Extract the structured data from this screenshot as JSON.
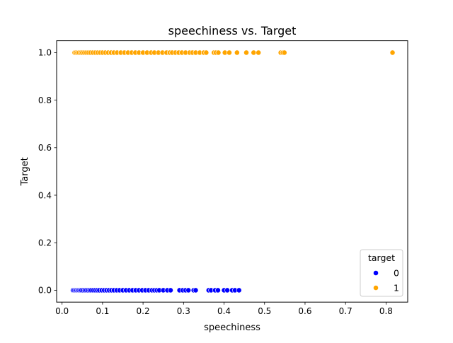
{
  "chart_data": {
    "type": "scatter",
    "title": "speechiness vs. Target",
    "xlabel": "speechiness",
    "ylabel": "Target",
    "xlim": [
      -0.0134,
      0.8535
    ],
    "ylim": [
      -0.05,
      1.05
    ],
    "xticks": [
      0.0,
      0.1,
      0.2,
      0.3,
      0.4,
      0.5,
      0.6,
      0.7,
      0.8
    ],
    "yticks": [
      0.0,
      0.2,
      0.4,
      0.6,
      0.8,
      1.0
    ],
    "xtick_labels": [
      "0.0",
      "0.1",
      "0.2",
      "0.3",
      "0.4",
      "0.5",
      "0.6",
      "0.7",
      "0.8"
    ],
    "ytick_labels": [
      "0.0",
      "0.2",
      "0.4",
      "0.6",
      "0.8",
      "1.0"
    ],
    "grid": false,
    "legend": {
      "title": "target",
      "placement": "lower-right",
      "entries": [
        {
          "label": "0",
          "color": "#0000ff"
        },
        {
          "label": "1",
          "color": "#ffa500"
        }
      ]
    },
    "series": [
      {
        "name": "0",
        "color": "#0000ff",
        "points": [
          {
            "x": 0.027,
            "y": 0
          },
          {
            "x": 0.03,
            "y": 0
          },
          {
            "x": 0.033,
            "y": 0
          },
          {
            "x": 0.036,
            "y": 0
          },
          {
            "x": 0.039,
            "y": 0
          },
          {
            "x": 0.042,
            "y": 0
          },
          {
            "x": 0.045,
            "y": 0
          },
          {
            "x": 0.048,
            "y": 0
          },
          {
            "x": 0.052,
            "y": 0
          },
          {
            "x": 0.056,
            "y": 0
          },
          {
            "x": 0.06,
            "y": 0
          },
          {
            "x": 0.064,
            "y": 0
          },
          {
            "x": 0.068,
            "y": 0
          },
          {
            "x": 0.072,
            "y": 0
          },
          {
            "x": 0.077,
            "y": 0
          },
          {
            "x": 0.082,
            "y": 0
          },
          {
            "x": 0.087,
            "y": 0
          },
          {
            "x": 0.092,
            "y": 0
          },
          {
            "x": 0.098,
            "y": 0
          },
          {
            "x": 0.104,
            "y": 0
          },
          {
            "x": 0.11,
            "y": 0
          },
          {
            "x": 0.116,
            "y": 0
          },
          {
            "x": 0.122,
            "y": 0
          },
          {
            "x": 0.128,
            "y": 0
          },
          {
            "x": 0.135,
            "y": 0
          },
          {
            "x": 0.142,
            "y": 0
          },
          {
            "x": 0.15,
            "y": 0
          },
          {
            "x": 0.158,
            "y": 0
          },
          {
            "x": 0.166,
            "y": 0
          },
          {
            "x": 0.174,
            "y": 0
          },
          {
            "x": 0.182,
            "y": 0
          },
          {
            "x": 0.19,
            "y": 0
          },
          {
            "x": 0.198,
            "y": 0
          },
          {
            "x": 0.206,
            "y": 0
          },
          {
            "x": 0.214,
            "y": 0
          },
          {
            "x": 0.222,
            "y": 0
          },
          {
            "x": 0.228,
            "y": 0
          },
          {
            "x": 0.234,
            "y": 0
          },
          {
            "x": 0.24,
            "y": 0
          },
          {
            "x": 0.25,
            "y": 0
          },
          {
            "x": 0.26,
            "y": 0
          },
          {
            "x": 0.268,
            "y": 0
          },
          {
            "x": 0.29,
            "y": 0
          },
          {
            "x": 0.298,
            "y": 0
          },
          {
            "x": 0.305,
            "y": 0
          },
          {
            "x": 0.312,
            "y": 0
          },
          {
            "x": 0.325,
            "y": 0
          },
          {
            "x": 0.33,
            "y": 0
          },
          {
            "x": 0.362,
            "y": 0
          },
          {
            "x": 0.368,
            "y": 0
          },
          {
            "x": 0.378,
            "y": 0
          },
          {
            "x": 0.385,
            "y": 0
          },
          {
            "x": 0.4,
            "y": 0
          },
          {
            "x": 0.408,
            "y": 0
          },
          {
            "x": 0.42,
            "y": 0
          },
          {
            "x": 0.427,
            "y": 0
          },
          {
            "x": 0.437,
            "y": 0
          }
        ]
      },
      {
        "name": "1",
        "color": "#ffa500",
        "points": [
          {
            "x": 0.031,
            "y": 1
          },
          {
            "x": 0.034,
            "y": 1
          },
          {
            "x": 0.038,
            "y": 1
          },
          {
            "x": 0.042,
            "y": 1
          },
          {
            "x": 0.046,
            "y": 1
          },
          {
            "x": 0.05,
            "y": 1
          },
          {
            "x": 0.055,
            "y": 1
          },
          {
            "x": 0.06,
            "y": 1
          },
          {
            "x": 0.065,
            "y": 1
          },
          {
            "x": 0.07,
            "y": 1
          },
          {
            "x": 0.076,
            "y": 1
          },
          {
            "x": 0.082,
            "y": 1
          },
          {
            "x": 0.088,
            "y": 1
          },
          {
            "x": 0.094,
            "y": 1
          },
          {
            "x": 0.1,
            "y": 1
          },
          {
            "x": 0.107,
            "y": 1
          },
          {
            "x": 0.114,
            "y": 1
          },
          {
            "x": 0.121,
            "y": 1
          },
          {
            "x": 0.128,
            "y": 1
          },
          {
            "x": 0.136,
            "y": 1
          },
          {
            "x": 0.145,
            "y": 1
          },
          {
            "x": 0.154,
            "y": 1
          },
          {
            "x": 0.163,
            "y": 1
          },
          {
            "x": 0.172,
            "y": 1
          },
          {
            "x": 0.181,
            "y": 1
          },
          {
            "x": 0.19,
            "y": 1
          },
          {
            "x": 0.2,
            "y": 1
          },
          {
            "x": 0.21,
            "y": 1
          },
          {
            "x": 0.22,
            "y": 1
          },
          {
            "x": 0.228,
            "y": 1
          },
          {
            "x": 0.238,
            "y": 1
          },
          {
            "x": 0.248,
            "y": 1
          },
          {
            "x": 0.258,
            "y": 1
          },
          {
            "x": 0.266,
            "y": 1
          },
          {
            "x": 0.272,
            "y": 1
          },
          {
            "x": 0.28,
            "y": 1
          },
          {
            "x": 0.288,
            "y": 1
          },
          {
            "x": 0.296,
            "y": 1
          },
          {
            "x": 0.305,
            "y": 1
          },
          {
            "x": 0.315,
            "y": 1
          },
          {
            "x": 0.322,
            "y": 1
          },
          {
            "x": 0.33,
            "y": 1
          },
          {
            "x": 0.34,
            "y": 1
          },
          {
            "x": 0.35,
            "y": 1
          },
          {
            "x": 0.356,
            "y": 1
          },
          {
            "x": 0.375,
            "y": 1
          },
          {
            "x": 0.38,
            "y": 1
          },
          {
            "x": 0.386,
            "y": 1
          },
          {
            "x": 0.402,
            "y": 1
          },
          {
            "x": 0.413,
            "y": 1
          },
          {
            "x": 0.432,
            "y": 1
          },
          {
            "x": 0.455,
            "y": 1
          },
          {
            "x": 0.473,
            "y": 1
          },
          {
            "x": 0.485,
            "y": 1
          },
          {
            "x": 0.54,
            "y": 1
          },
          {
            "x": 0.545,
            "y": 1
          },
          {
            "x": 0.549,
            "y": 1
          },
          {
            "x": 0.816,
            "y": 1
          }
        ]
      }
    ]
  }
}
